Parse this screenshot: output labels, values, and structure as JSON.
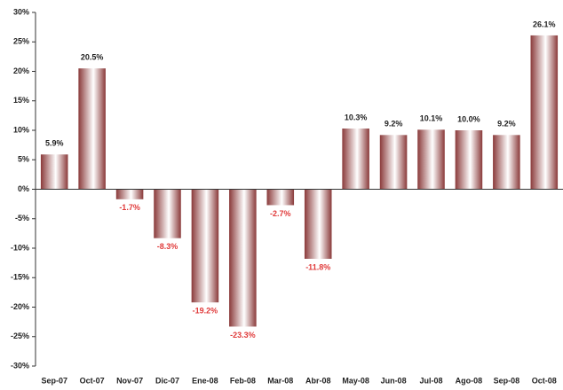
{
  "chart_data": {
    "type": "bar",
    "categories": [
      "Sep-07",
      "Oct-07",
      "Nov-07",
      "Dic-07",
      "Ene-08",
      "Feb-08",
      "Mar-08",
      "Abr-08",
      "May-08",
      "Jun-08",
      "Jul-08",
      "Ago-08",
      "Sep-08",
      "Oct-08"
    ],
    "values": [
      5.9,
      20.5,
      -1.7,
      -8.3,
      -19.2,
      -23.3,
      -2.7,
      -11.8,
      10.3,
      9.2,
      10.1,
      10.0,
      9.2,
      26.1
    ],
    "value_labels": [
      "5.9%",
      "20.5%",
      "-1.7%",
      "-8.3%",
      "-19.2%",
      "-23.3%",
      "-2.7%",
      "-11.8%",
      "10.3%",
      "9.2%",
      "10.1%",
      "10.0%",
      "9.2%",
      "26.1%"
    ],
    "color": "#8a3a3a",
    "positive_label_color": "#222222",
    "negative_label_color": "#e03a3a",
    "ylim": [
      -30,
      30
    ],
    "yticks": [
      {
        "value": -30,
        "label": "-30%"
      },
      {
        "value": -25,
        "label": "-25%"
      },
      {
        "value": -20,
        "label": "-20%"
      },
      {
        "value": -15,
        "label": "-15%"
      },
      {
        "value": -10,
        "label": "-10%"
      },
      {
        "value": -5,
        "label": "-5%"
      },
      {
        "value": 0,
        "label": "0%"
      },
      {
        "value": 5,
        "label": "5%"
      },
      {
        "value": 10,
        "label": "10%"
      },
      {
        "value": 15,
        "label": "15%"
      },
      {
        "value": 20,
        "label": "20%"
      },
      {
        "value": 25,
        "label": "25%"
      },
      {
        "value": 30,
        "label": "30%"
      }
    ],
    "grid": false
  }
}
